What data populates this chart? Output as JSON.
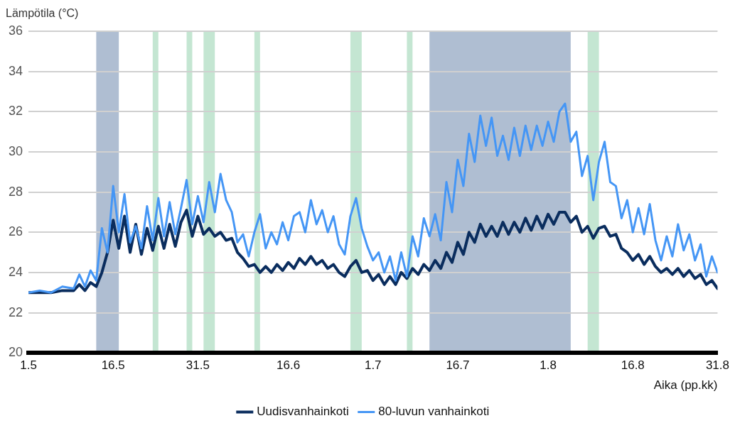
{
  "chart_data": {
    "type": "line",
    "ylabel": "Lämpötila (°C)",
    "xlabel": "Aika (pp.kk)",
    "x": [
      "--05-01",
      "--05-03",
      "--05-05",
      "--05-07",
      "--05-09",
      "--05-10",
      "--05-11",
      "--05-12",
      "--05-13",
      "--05-14",
      "--05-15",
      "--05-16",
      "--05-17",
      "--05-18",
      "--05-19",
      "--05-20",
      "--05-21",
      "--05-22",
      "--05-23",
      "--05-24",
      "--05-25",
      "--05-26",
      "--05-27",
      "--05-28",
      "--05-29",
      "--05-30",
      "--05-31",
      "--06-01",
      "--06-02",
      "--06-03",
      "--06-04",
      "--06-05",
      "--06-06",
      "--06-07",
      "--06-08",
      "--06-09",
      "--06-10",
      "--06-11",
      "--06-12",
      "--06-13",
      "--06-14",
      "--06-15",
      "--06-16",
      "--06-17",
      "--06-18",
      "--06-19",
      "--06-20",
      "--06-21",
      "--06-22",
      "--06-23",
      "--06-24",
      "--06-25",
      "--06-26",
      "--06-27",
      "--06-28",
      "--06-29",
      "--06-30",
      "--07-01",
      "--07-02",
      "--07-03",
      "--07-04",
      "--07-05",
      "--07-06",
      "--07-07",
      "--07-08",
      "--07-09",
      "--07-10",
      "--07-11",
      "--07-12",
      "--07-13",
      "--07-14",
      "--07-15",
      "--07-16",
      "--07-17",
      "--07-18",
      "--07-19",
      "--07-20",
      "--07-21",
      "--07-22",
      "--07-23",
      "--07-24",
      "--07-25",
      "--07-26",
      "--07-27",
      "--07-28",
      "--07-29",
      "--07-30",
      "--07-31",
      "--08-01",
      "--08-02",
      "--08-03",
      "--08-04",
      "--08-05",
      "--08-06",
      "--08-07",
      "--08-08",
      "--08-09",
      "--08-10",
      "--08-11",
      "--08-12",
      "--08-13",
      "--08-14",
      "--08-15",
      "--08-16",
      "--08-17",
      "--08-18",
      "--08-19",
      "--08-20",
      "--08-21",
      "--08-22",
      "--08-23",
      "--08-24",
      "--08-25",
      "--08-26",
      "--08-27",
      "--08-28",
      "--08-29",
      "--08-30",
      "--08-31"
    ],
    "series": [
      {
        "name": "Uudisvanhainkoti",
        "color": "#0a2d5e",
        "values": [
          23.0,
          23.0,
          23.0,
          23.1,
          23.1,
          23.4,
          23.1,
          23.5,
          23.3,
          24.0,
          25.0,
          26.6,
          25.2,
          26.8,
          25.0,
          26.4,
          24.9,
          26.2,
          25.1,
          26.3,
          25.2,
          26.4,
          25.3,
          26.5,
          27.1,
          25.8,
          26.8,
          25.9,
          26.2,
          25.8,
          26.0,
          25.6,
          25.7,
          25.0,
          24.7,
          24.3,
          24.4,
          24.0,
          24.3,
          24.0,
          24.4,
          24.1,
          24.5,
          24.2,
          24.7,
          24.4,
          24.8,
          24.4,
          24.6,
          24.2,
          24.4,
          24.0,
          23.8,
          24.3,
          24.6,
          24.0,
          24.1,
          23.6,
          23.9,
          23.4,
          23.8,
          23.4,
          24.0,
          23.7,
          24.2,
          23.9,
          24.4,
          24.1,
          24.6,
          24.2,
          25.0,
          24.5,
          25.5,
          24.9,
          26.0,
          25.5,
          26.4,
          25.8,
          26.3,
          25.8,
          26.5,
          25.9,
          26.5,
          26.0,
          26.7,
          26.1,
          26.8,
          26.2,
          26.9,
          26.4,
          27.0,
          27.0,
          26.5,
          26.8,
          26.0,
          26.3,
          25.7,
          26.2,
          26.3,
          25.8,
          25.9,
          25.2,
          25.0,
          24.6,
          24.9,
          24.4,
          24.8,
          24.3,
          24.0,
          24.2,
          23.9,
          24.2,
          23.8,
          24.1,
          23.7,
          23.9,
          23.4,
          23.6,
          23.2
        ]
      },
      {
        "name": "80-luvun vanhainkoti",
        "color": "#4596f5",
        "values": [
          23.0,
          23.1,
          23.0,
          23.3,
          23.2,
          23.9,
          23.3,
          24.1,
          23.6,
          26.2,
          25.0,
          28.3,
          26.0,
          27.9,
          25.5,
          26.3,
          25.2,
          27.3,
          25.6,
          27.7,
          25.8,
          27.5,
          25.9,
          27.2,
          28.6,
          26.4,
          27.8,
          26.5,
          28.5,
          27.0,
          28.9,
          27.6,
          27.0,
          25.5,
          25.9,
          24.8,
          26.0,
          26.9,
          25.2,
          26.0,
          25.4,
          26.5,
          25.6,
          26.8,
          27.0,
          26.0,
          27.6,
          26.4,
          27.1,
          26.0,
          26.8,
          25.4,
          24.9,
          26.8,
          27.7,
          26.2,
          25.3,
          24.6,
          25.0,
          24.0,
          24.8,
          23.6,
          25.0,
          23.8,
          25.8,
          24.8,
          26.7,
          25.8,
          26.9,
          25.6,
          28.5,
          27.0,
          29.6,
          28.3,
          30.9,
          29.5,
          31.8,
          30.3,
          31.7,
          29.8,
          30.8,
          29.6,
          31.2,
          29.8,
          31.3,
          30.1,
          31.3,
          30.3,
          31.5,
          30.5,
          32.0,
          32.4,
          30.5,
          31.0,
          28.8,
          29.8,
          27.6,
          29.5,
          30.5,
          28.5,
          28.3,
          26.7,
          27.6,
          26.0,
          27.2,
          25.9,
          27.4,
          25.6,
          24.6,
          25.8,
          24.8,
          26.4,
          25.1,
          25.9,
          24.6,
          25.4,
          23.8,
          24.8,
          24.0
        ]
      }
    ],
    "xlim": [
      "--05-01",
      "--08-31"
    ],
    "xticks": [
      {
        "value": "--05-01",
        "label": "1.5"
      },
      {
        "value": "--05-16",
        "label": "16.5"
      },
      {
        "value": "--05-31",
        "label": "31.5"
      },
      {
        "value": "--06-16",
        "label": "16.6"
      },
      {
        "value": "--07-01",
        "label": "1.7"
      },
      {
        "value": "--07-16",
        "label": "16.7"
      },
      {
        "value": "--08-01",
        "label": "1.8"
      },
      {
        "value": "--08-16",
        "label": "16.8"
      },
      {
        "value": "--08-31",
        "label": "31.8"
      }
    ],
    "ylim": [
      20,
      36
    ],
    "yticks": [
      20,
      22,
      24,
      26,
      28,
      30,
      32,
      34,
      36
    ],
    "bands": [
      {
        "axis": "x",
        "from": "--05-13",
        "to": "--05-17",
        "color": "#afbed2"
      },
      {
        "axis": "x",
        "from": "--05-23",
        "to": "--05-24",
        "color": "#c4e6d2"
      },
      {
        "axis": "x",
        "from": "--05-29",
        "to": "--05-30",
        "color": "#c4e6d2"
      },
      {
        "axis": "x",
        "from": "--06-01",
        "to": "--06-03",
        "color": "#c4e6d2"
      },
      {
        "axis": "x",
        "from": "--06-10",
        "to": "--06-11",
        "color": "#c4e6d2"
      },
      {
        "axis": "x",
        "from": "--06-27",
        "to": "--06-29",
        "color": "#c4e6d2"
      },
      {
        "axis": "x",
        "from": "--07-07",
        "to": "--07-08",
        "color": "#c4e6d2"
      },
      {
        "axis": "x",
        "from": "--07-11",
        "to": "--08-05",
        "color": "#afbed2"
      },
      {
        "axis": "x",
        "from": "--08-08",
        "to": "--08-10",
        "color": "#c4e6d2"
      }
    ],
    "grid": "y",
    "legend": "bottom",
    "line_style": "solid"
  }
}
